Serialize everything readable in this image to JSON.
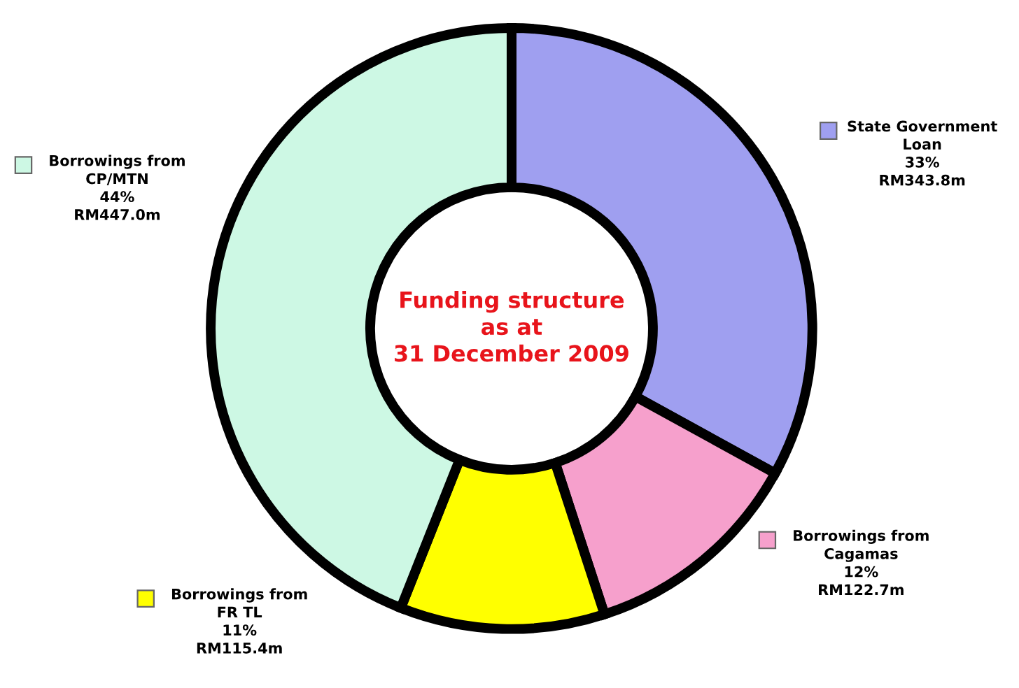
{
  "chart_data": {
    "type": "donut",
    "title": "Funding structure\nas at\n31 December 2009",
    "categories": [
      "State Government\nLoan",
      "Borrowings from\nCagamas",
      "Borrowings from\nFR TL",
      "Borrowings from\nCP/MTN"
    ],
    "values": [
      33,
      12,
      11,
      44
    ],
    "value_labels": [
      "33%\nRM343.8m",
      "12%\nRM122.7m",
      "11%\nRM115.4m",
      "44%\nRM447.0m"
    ],
    "colors": [
      "#9f9ff0",
      "#f6a0cc",
      "#ffff00",
      "#cdf8e4"
    ],
    "legend": "right"
  }
}
